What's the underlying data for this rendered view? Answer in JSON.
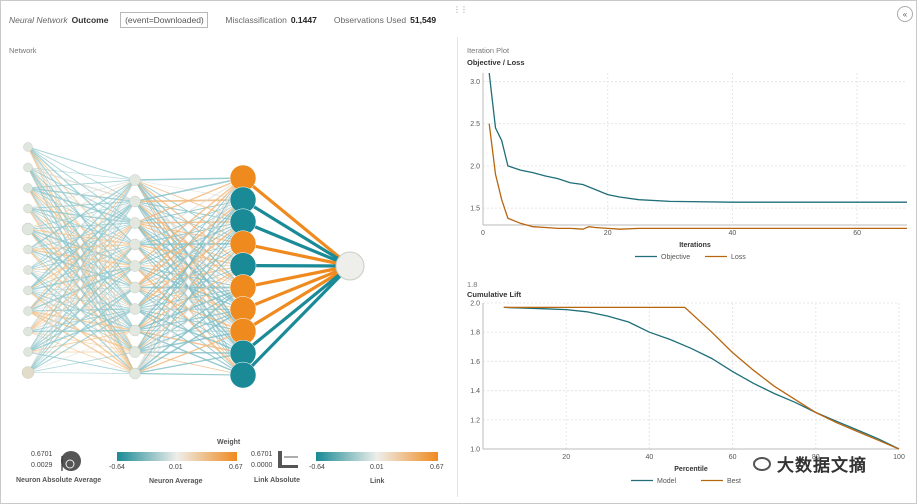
{
  "header": {
    "model_name": "Neural Network",
    "model_target": "Outcome",
    "event_selector": "(event=Downloaded)",
    "misclassification_label": "Misclassification",
    "misclassification_value": "0.1447",
    "observations_label": "Observations Used",
    "observations_value": "51,549",
    "collapse_glyph": "«"
  },
  "network_panel": {
    "title": "Network",
    "legend": {
      "weight_title": "Weight",
      "neuron_abs_avg_max": "0.6701",
      "neuron_abs_avg_min": "0.0029",
      "neuron_abs_avg_label": "Neuron Absolute Average",
      "neuron_avg_min": "-0.64",
      "neuron_avg_mid": "0.01",
      "neuron_avg_max": "0.67",
      "neuron_avg_label": "Neuron Average",
      "link_abs_max": "0.6701",
      "link_abs_min": "0.0000",
      "link_abs_label": "Link Absolute",
      "link_min": "-0.64",
      "link_mid": "0.01",
      "link_max": "0.67",
      "link_label": "Link",
      "color_negative": "#1a8a96",
      "color_neutral": "#eeeeea",
      "color_positive": "#ef8a1e"
    }
  },
  "iteration_panel": {
    "title": "Iteration Plot"
  },
  "lift_panel": {
    "title": "1.8"
  },
  "watermark": {
    "text": "大数据文摘"
  },
  "chart_data": [
    {
      "type": "line",
      "title": "Objective / Loss",
      "xlabel": "Iterations",
      "ylabel": "",
      "xlim": [
        0,
        68
      ],
      "ylim": [
        1.3,
        3.1
      ],
      "x_ticks": [
        "0",
        "20",
        "40",
        "60"
      ],
      "y_ticks": [
        "1.5",
        "2.0",
        "2.5",
        "3.0"
      ],
      "grid": true,
      "legend": "bottom",
      "series": [
        {
          "name": "Objective",
          "color": "#1f6e78",
          "x": [
            1,
            2,
            3,
            4,
            6,
            8,
            10,
            12,
            14,
            16,
            18,
            20,
            22,
            25,
            30,
            40,
            50,
            60,
            68
          ],
          "y": [
            3.1,
            2.45,
            2.3,
            2.0,
            1.95,
            1.92,
            1.88,
            1.85,
            1.8,
            1.78,
            1.72,
            1.66,
            1.63,
            1.6,
            1.58,
            1.57,
            1.57,
            1.57,
            1.57
          ]
        },
        {
          "name": "Loss",
          "color": "#b8650f",
          "x": [
            1,
            2,
            3,
            4,
            6,
            8,
            10,
            12,
            14,
            16,
            17,
            18,
            20,
            22,
            25,
            30,
            40,
            50,
            60,
            68
          ],
          "y": [
            2.5,
            1.9,
            1.6,
            1.38,
            1.32,
            1.28,
            1.27,
            1.26,
            1.26,
            1.25,
            1.28,
            1.27,
            1.26,
            1.25,
            1.26,
            1.26,
            1.26,
            1.26,
            1.26,
            1.26
          ]
        }
      ]
    },
    {
      "type": "line",
      "title": "Cumulative Lift",
      "xlabel": "Percentile",
      "ylabel": "",
      "xlim": [
        0,
        100
      ],
      "ylim": [
        1.0,
        2.0
      ],
      "x_ticks": [
        "20",
        "40",
        "60",
        "80",
        "100"
      ],
      "y_ticks": [
        "1.0",
        "1.2",
        "1.4",
        "1.6",
        "1.8",
        "2.0"
      ],
      "grid": true,
      "legend": "bottom",
      "series": [
        {
          "name": "Model",
          "color": "#1f6e78",
          "x": [
            5,
            10,
            15,
            20,
            25,
            30,
            35,
            40,
            45,
            50,
            55,
            60,
            65,
            70,
            75,
            80,
            85,
            90,
            95,
            100
          ],
          "y": [
            1.97,
            1.965,
            1.96,
            1.955,
            1.94,
            1.91,
            1.87,
            1.8,
            1.75,
            1.69,
            1.62,
            1.53,
            1.45,
            1.38,
            1.32,
            1.25,
            1.19,
            1.13,
            1.07,
            1.0
          ]
        },
        {
          "name": "Best",
          "color": "#b8650f",
          "x": [
            5,
            10,
            20,
            30,
            40,
            48.5,
            55,
            60,
            65,
            70,
            75,
            80,
            85,
            90,
            95,
            100
          ],
          "y": [
            1.97,
            1.97,
            1.97,
            1.97,
            1.97,
            1.97,
            1.8,
            1.66,
            1.54,
            1.43,
            1.34,
            1.25,
            1.18,
            1.12,
            1.06,
            1.0
          ]
        }
      ]
    }
  ]
}
